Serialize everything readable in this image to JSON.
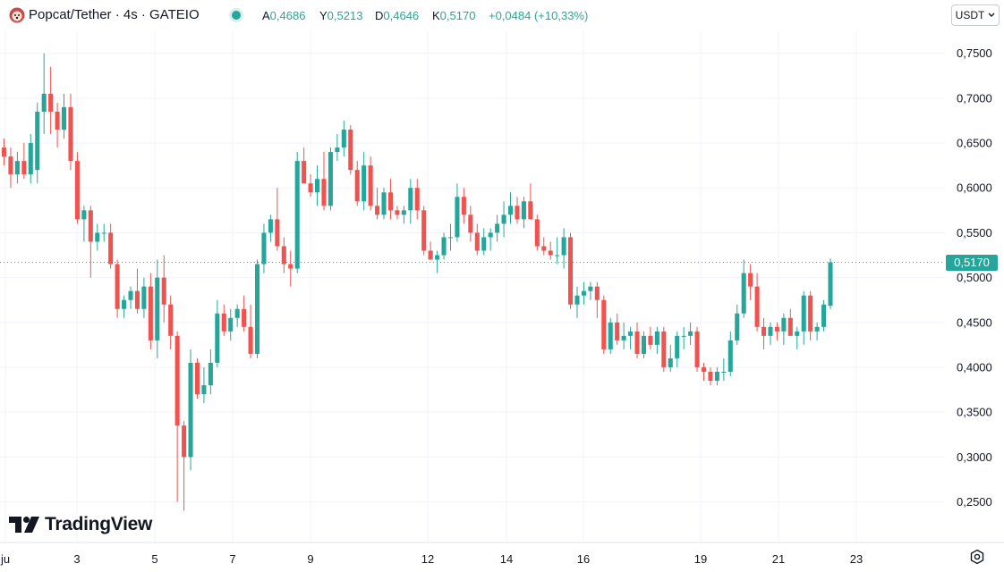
{
  "header": {
    "symbol_icon": "popcat-icon",
    "symbol": "Popcat/Tether · 4s · GATEIO",
    "status_dot_color": "#26a69a",
    "ohlc": {
      "o_label": "A",
      "o_value": "0,4686",
      "h_label": "Y",
      "h_value": "0,5213",
      "l_label": "D",
      "l_value": "0,4646",
      "c_label": "K",
      "c_value": "0,5170",
      "change": "+0,0484 (+10,33%)"
    }
  },
  "currency": {
    "label": "USDT",
    "icon": "chevron-down-icon"
  },
  "price_badge": "0,5170",
  "logo_text": "TradingView",
  "settings_icon": "gear-icon",
  "colors": {
    "up": "#26a69a",
    "down": "#ef5350",
    "grid": "#f0f3fa"
  },
  "chart_data": {
    "type": "candlestick",
    "y_ticks": [
      "0,7500",
      "0,7000",
      "0,6500",
      "0,6000",
      "0,5500",
      "0,5000",
      "0,4500",
      "0,4000",
      "0,3500",
      "0,3000",
      "0,2500"
    ],
    "y_tick_values": [
      0.75,
      0.7,
      0.65,
      0.6,
      0.55,
      0.5,
      0.45,
      0.4,
      0.35,
      0.3,
      0.25
    ],
    "ylim": [
      0.23,
      0.78
    ],
    "x_ticks": [
      "ju",
      "3",
      "5",
      "7",
      "9",
      "12",
      "14",
      "16",
      "19",
      "21",
      "23"
    ],
    "last_price": 0.517,
    "candles": [
      [
        0.645,
        0.655,
        0.625,
        0.635
      ],
      [
        0.635,
        0.645,
        0.6,
        0.615
      ],
      [
        0.615,
        0.64,
        0.605,
        0.63
      ],
      [
        0.63,
        0.65,
        0.61,
        0.615
      ],
      [
        0.615,
        0.66,
        0.605,
        0.65
      ],
      [
        0.62,
        0.695,
        0.605,
        0.685
      ],
      [
        0.685,
        0.75,
        0.66,
        0.705
      ],
      [
        0.705,
        0.735,
        0.66,
        0.685
      ],
      [
        0.685,
        0.695,
        0.645,
        0.665
      ],
      [
        0.665,
        0.705,
        0.655,
        0.69
      ],
      [
        0.69,
        0.705,
        0.62,
        0.63
      ],
      [
        0.63,
        0.64,
        0.56,
        0.565
      ],
      [
        0.565,
        0.58,
        0.54,
        0.575
      ],
      [
        0.575,
        0.58,
        0.5,
        0.54
      ],
      [
        0.54,
        0.56,
        0.53,
        0.55
      ],
      [
        0.55,
        0.56,
        0.54,
        0.55
      ],
      [
        0.55,
        0.56,
        0.51,
        0.515
      ],
      [
        0.515,
        0.52,
        0.455,
        0.465
      ],
      [
        0.465,
        0.48,
        0.455,
        0.475
      ],
      [
        0.475,
        0.49,
        0.465,
        0.485
      ],
      [
        0.485,
        0.51,
        0.46,
        0.465
      ],
      [
        0.465,
        0.5,
        0.455,
        0.49
      ],
      [
        0.49,
        0.505,
        0.42,
        0.43
      ],
      [
        0.43,
        0.52,
        0.41,
        0.5
      ],
      [
        0.5,
        0.525,
        0.45,
        0.47
      ],
      [
        0.47,
        0.48,
        0.42,
        0.435
      ],
      [
        0.435,
        0.44,
        0.25,
        0.335
      ],
      [
        0.335,
        0.34,
        0.24,
        0.3
      ],
      [
        0.3,
        0.42,
        0.285,
        0.405
      ],
      [
        0.405,
        0.41,
        0.365,
        0.37
      ],
      [
        0.37,
        0.4,
        0.36,
        0.38
      ],
      [
        0.38,
        0.42,
        0.37,
        0.405
      ],
      [
        0.405,
        0.475,
        0.4,
        0.46
      ],
      [
        0.46,
        0.47,
        0.435,
        0.44
      ],
      [
        0.44,
        0.465,
        0.43,
        0.455
      ],
      [
        0.455,
        0.47,
        0.445,
        0.465
      ],
      [
        0.465,
        0.48,
        0.44,
        0.445
      ],
      [
        0.445,
        0.47,
        0.41,
        0.415
      ],
      [
        0.415,
        0.52,
        0.41,
        0.515
      ],
      [
        0.515,
        0.56,
        0.505,
        0.55
      ],
      [
        0.55,
        0.57,
        0.54,
        0.565
      ],
      [
        0.565,
        0.6,
        0.53,
        0.535
      ],
      [
        0.535,
        0.545,
        0.505,
        0.515
      ],
      [
        0.515,
        0.53,
        0.49,
        0.51
      ],
      [
        0.51,
        0.64,
        0.505,
        0.63
      ],
      [
        0.63,
        0.645,
        0.605,
        0.605
      ],
      [
        0.605,
        0.615,
        0.59,
        0.595
      ],
      [
        0.595,
        0.625,
        0.58,
        0.61
      ],
      [
        0.61,
        0.64,
        0.575,
        0.58
      ],
      [
        0.58,
        0.645,
        0.575,
        0.64
      ],
      [
        0.64,
        0.66,
        0.63,
        0.645
      ],
      [
        0.645,
        0.675,
        0.635,
        0.665
      ],
      [
        0.665,
        0.67,
        0.615,
        0.62
      ],
      [
        0.62,
        0.63,
        0.58,
        0.585
      ],
      [
        0.585,
        0.64,
        0.575,
        0.625
      ],
      [
        0.625,
        0.635,
        0.575,
        0.58
      ],
      [
        0.58,
        0.6,
        0.565,
        0.57
      ],
      [
        0.57,
        0.6,
        0.565,
        0.595
      ],
      [
        0.595,
        0.61,
        0.565,
        0.575
      ],
      [
        0.575,
        0.58,
        0.565,
        0.57
      ],
      [
        0.57,
        0.58,
        0.56,
        0.575
      ],
      [
        0.575,
        0.61,
        0.56,
        0.6
      ],
      [
        0.6,
        0.61,
        0.565,
        0.575
      ],
      [
        0.575,
        0.58,
        0.525,
        0.53
      ],
      [
        0.53,
        0.54,
        0.52,
        0.52
      ],
      [
        0.52,
        0.53,
        0.505,
        0.525
      ],
      [
        0.525,
        0.55,
        0.52,
        0.545
      ],
      [
        0.545,
        0.56,
        0.53,
        0.545
      ],
      [
        0.545,
        0.605,
        0.54,
        0.59
      ],
      [
        0.59,
        0.6,
        0.56,
        0.57
      ],
      [
        0.57,
        0.58,
        0.54,
        0.55
      ],
      [
        0.55,
        0.56,
        0.525,
        0.53
      ],
      [
        0.53,
        0.555,
        0.525,
        0.545
      ],
      [
        0.545,
        0.555,
        0.53,
        0.55
      ],
      [
        0.55,
        0.57,
        0.54,
        0.56
      ],
      [
        0.56,
        0.585,
        0.545,
        0.57
      ],
      [
        0.57,
        0.595,
        0.56,
        0.58
      ],
      [
        0.58,
        0.59,
        0.56,
        0.565
      ],
      [
        0.565,
        0.59,
        0.555,
        0.585
      ],
      [
        0.585,
        0.605,
        0.565,
        0.565
      ],
      [
        0.565,
        0.57,
        0.53,
        0.535
      ],
      [
        0.535,
        0.545,
        0.525,
        0.53
      ],
      [
        0.53,
        0.54,
        0.52,
        0.525
      ],
      [
        0.525,
        0.545,
        0.515,
        0.525
      ],
      [
        0.525,
        0.555,
        0.51,
        0.545
      ],
      [
        0.545,
        0.55,
        0.465,
        0.47
      ],
      [
        0.47,
        0.49,
        0.455,
        0.48
      ],
      [
        0.48,
        0.495,
        0.47,
        0.485
      ],
      [
        0.485,
        0.495,
        0.475,
        0.49
      ],
      [
        0.49,
        0.495,
        0.455,
        0.475
      ],
      [
        0.475,
        0.48,
        0.415,
        0.42
      ],
      [
        0.42,
        0.455,
        0.415,
        0.45
      ],
      [
        0.45,
        0.46,
        0.425,
        0.43
      ],
      [
        0.43,
        0.45,
        0.42,
        0.435
      ],
      [
        0.435,
        0.445,
        0.42,
        0.44
      ],
      [
        0.44,
        0.45,
        0.41,
        0.415
      ],
      [
        0.415,
        0.44,
        0.41,
        0.435
      ],
      [
        0.435,
        0.445,
        0.42,
        0.425
      ],
      [
        0.425,
        0.445,
        0.415,
        0.44
      ],
      [
        0.44,
        0.445,
        0.395,
        0.4
      ],
      [
        0.4,
        0.425,
        0.395,
        0.41
      ],
      [
        0.41,
        0.44,
        0.4,
        0.435
      ],
      [
        0.435,
        0.445,
        0.42,
        0.435
      ],
      [
        0.435,
        0.45,
        0.425,
        0.44
      ],
      [
        0.44,
        0.445,
        0.395,
        0.4
      ],
      [
        0.4,
        0.405,
        0.385,
        0.395
      ],
      [
        0.395,
        0.4,
        0.38,
        0.385
      ],
      [
        0.385,
        0.4,
        0.38,
        0.395
      ],
      [
        0.395,
        0.41,
        0.385,
        0.395
      ],
      [
        0.395,
        0.44,
        0.39,
        0.43
      ],
      [
        0.43,
        0.47,
        0.425,
        0.46
      ],
      [
        0.46,
        0.52,
        0.455,
        0.505
      ],
      [
        0.505,
        0.515,
        0.475,
        0.49
      ],
      [
        0.49,
        0.505,
        0.44,
        0.445
      ],
      [
        0.445,
        0.455,
        0.42,
        0.435
      ],
      [
        0.435,
        0.45,
        0.425,
        0.445
      ],
      [
        0.445,
        0.45,
        0.43,
        0.44
      ],
      [
        0.44,
        0.46,
        0.425,
        0.455
      ],
      [
        0.455,
        0.465,
        0.435,
        0.435
      ],
      [
        0.435,
        0.445,
        0.42,
        0.44
      ],
      [
        0.44,
        0.485,
        0.425,
        0.48
      ],
      [
        0.48,
        0.485,
        0.43,
        0.44
      ],
      [
        0.44,
        0.45,
        0.43,
        0.445
      ],
      [
        0.445,
        0.475,
        0.44,
        0.47
      ],
      [
        0.4686,
        0.5213,
        0.4646,
        0.517
      ]
    ]
  }
}
